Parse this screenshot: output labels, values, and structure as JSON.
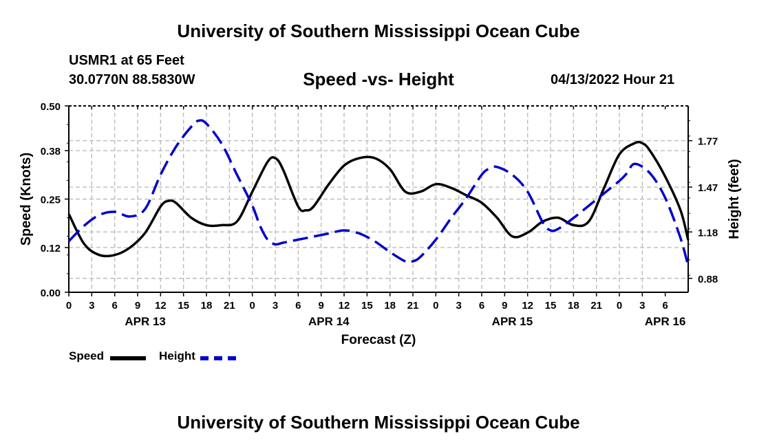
{
  "header": {
    "title": "University of Southern Mississippi Ocean Cube",
    "station": "USMR1 at 65 Feet",
    "coordinates": "30.0770N  88.5830W",
    "subtitle": "Speed -vs- Height",
    "datetime": "04/13/2022 Hour 21"
  },
  "footer": {
    "title": "University of Southern Mississippi Ocean Cube"
  },
  "legend": {
    "speed_label": "Speed",
    "height_label": "Height"
  },
  "colors": {
    "speed": "#000000",
    "height": "#0000cc",
    "grid": "#bbbbbb"
  },
  "chart_data": {
    "type": "line",
    "title": "Speed -vs- Height",
    "xlabel": "Forecast (Z)",
    "ylabel": "Speed (Knots)",
    "y2label": "Height (feet)",
    "xlim": [
      0,
      81
    ],
    "ylim": [
      0,
      0.5
    ],
    "y2lim": [
      0.79,
      1.995
    ],
    "x_tick_labels": [
      "0",
      "3",
      "6",
      "9",
      "12",
      "15",
      "18",
      "21",
      "0",
      "3",
      "6",
      "9",
      "12",
      "15",
      "18",
      "21",
      "0",
      "3",
      "6",
      "9",
      "12",
      "15",
      "18",
      "21",
      "0",
      "3",
      "6"
    ],
    "date_labels": [
      {
        "x": 10,
        "label": "APR 13"
      },
      {
        "x": 34,
        "label": "APR 14"
      },
      {
        "x": 58,
        "label": "APR 15"
      },
      {
        "x": 78,
        "label": "APR 16"
      }
    ],
    "y_ticks": [
      0.0,
      0.12,
      0.25,
      0.38,
      0.5
    ],
    "y_tick_labels": [
      "0.00",
      "0.12",
      "0.25",
      "0.38",
      "0.50"
    ],
    "y2_ticks": [
      0.88,
      1.18,
      1.47,
      1.77
    ],
    "y2_tick_labels": [
      "0.88",
      "1.18",
      "1.47",
      "1.77"
    ],
    "grid": true,
    "series": [
      {
        "name": "Speed",
        "axis": "left",
        "style": "solid",
        "x": [
          0,
          2,
          4,
          6,
          8,
          10,
          12,
          13,
          14,
          16,
          18,
          20,
          22,
          24,
          26,
          27,
          28,
          30,
          31,
          32,
          34,
          36,
          38,
          40,
          42,
          44,
          46,
          48,
          50,
          52,
          54,
          56,
          58,
          60,
          62,
          64,
          66,
          68,
          70,
          72,
          74,
          75,
          76,
          78,
          80,
          81
        ],
        "values": [
          0.21,
          0.13,
          0.1,
          0.1,
          0.12,
          0.16,
          0.23,
          0.245,
          0.24,
          0.2,
          0.18,
          0.18,
          0.19,
          0.27,
          0.35,
          0.36,
          0.33,
          0.23,
          0.22,
          0.23,
          0.29,
          0.34,
          0.36,
          0.36,
          0.33,
          0.27,
          0.27,
          0.29,
          0.28,
          0.26,
          0.24,
          0.2,
          0.15,
          0.16,
          0.19,
          0.2,
          0.18,
          0.19,
          0.28,
          0.37,
          0.4,
          0.4,
          0.38,
          0.31,
          0.22,
          0.14
        ]
      },
      {
        "name": "Height",
        "axis": "right",
        "style": "dashed",
        "x": [
          0,
          2,
          4,
          6,
          8,
          10,
          12,
          14,
          16,
          17,
          18,
          20,
          22,
          24,
          25,
          26,
          27,
          28,
          30,
          32,
          34,
          36,
          38,
          40,
          42,
          44,
          45,
          46,
          48,
          50,
          52,
          54,
          55,
          56,
          58,
          60,
          62,
          63,
          64,
          66,
          68,
          70,
          72,
          73,
          74,
          76,
          78,
          80,
          81
        ],
        "values": [
          1.12,
          1.22,
          1.29,
          1.31,
          1.28,
          1.33,
          1.55,
          1.73,
          1.86,
          1.9,
          1.88,
          1.75,
          1.55,
          1.35,
          1.22,
          1.13,
          1.1,
          1.11,
          1.13,
          1.15,
          1.17,
          1.19,
          1.17,
          1.12,
          1.05,
          0.99,
          0.99,
          1.02,
          1.13,
          1.27,
          1.4,
          1.55,
          1.59,
          1.6,
          1.55,
          1.44,
          1.24,
          1.19,
          1.2,
          1.27,
          1.35,
          1.43,
          1.51,
          1.56,
          1.62,
          1.56,
          1.4,
          1.14,
          0.96
        ]
      }
    ]
  }
}
